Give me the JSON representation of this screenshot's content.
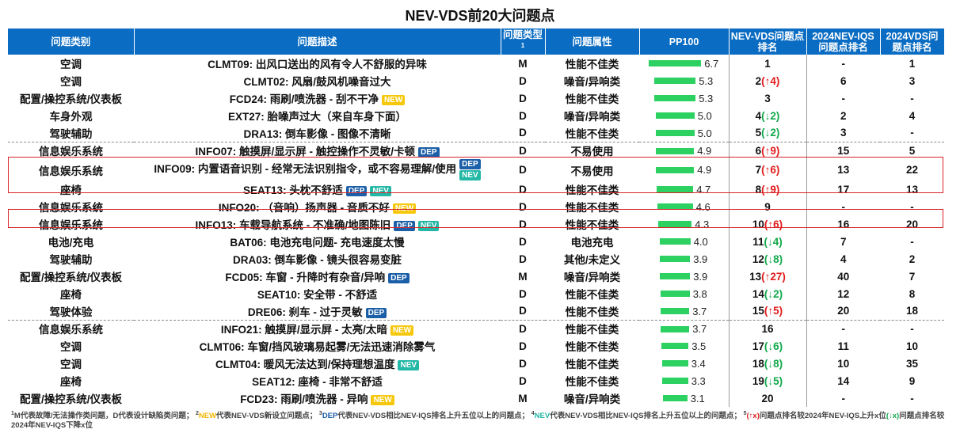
{
  "title": "NEV-VDS前20大问题点",
  "headers": {
    "category": "问题类别",
    "desc": "问题描述",
    "type": "问题类型",
    "type_sup": "1",
    "attr": "问题属性",
    "pp": "PP100",
    "nev": "NEV-VDS问题点排名",
    "iqs": "2024NEV-IQS问题点排名",
    "vds": "2024VDS问题点排名"
  },
  "badge_labels": {
    "NEW": "NEW",
    "DEP": "DEP",
    "NEV": "NEV"
  },
  "colors": {
    "header_bg": "#0a6cc2",
    "bar": "#2dd161",
    "up": "#e21a1a",
    "down": "#10a84a",
    "new": "#f6c80d",
    "dep": "#1b5fa8",
    "nev": "#23b7a6",
    "highlight": "#d8242a"
  },
  "chart_data": {
    "type": "table",
    "title": "NEV-VDS前20大问题点",
    "pp_max": 6.7,
    "rows": [
      {
        "category": "空调",
        "desc": "CLMT09: 出风口送出的风有令人不舒服的异味",
        "badges": [],
        "type": "M",
        "attr": "性能不佳类",
        "pp100": "6.7",
        "rank": "1",
        "change": "",
        "dir": "",
        "iqs": "-",
        "vds": "1"
      },
      {
        "category": "空调",
        "desc": "CLMT02: 风扇/鼓风机噪音过大",
        "badges": [],
        "type": "D",
        "attr": "噪音/异响类",
        "pp100": "5.3",
        "rank": "2",
        "change": "↑4",
        "dir": "up",
        "iqs": "6",
        "vds": "3"
      },
      {
        "category": "配置/操控系统/仪表板",
        "desc": "FCD24: 雨刷/喷洗器 - 刮不干净",
        "badges": [
          "NEW"
        ],
        "type": "D",
        "attr": "性能不佳类",
        "pp100": "5.3",
        "rank": "3",
        "change": "",
        "dir": "",
        "iqs": "-",
        "vds": "-"
      },
      {
        "category": "车身外观",
        "desc": "EXT27: 胎噪声过大（来自车身下面）",
        "badges": [],
        "type": "D",
        "attr": "噪音/异响类",
        "pp100": "5.0",
        "rank": "4",
        "change": "↓2",
        "dir": "down",
        "iqs": "2",
        "vds": "4"
      },
      {
        "category": "驾驶辅助",
        "desc": "DRA13: 倒车影像 - 图像不清晰",
        "badges": [],
        "type": "D",
        "attr": "性能不佳类",
        "pp100": "5.0",
        "rank": "5",
        "change": "↓2",
        "dir": "down",
        "iqs": "3",
        "vds": "-"
      },
      {
        "category": "信息娱乐系统",
        "desc": "INFO07: 触摸屏/显示屏 - 触控操作不灵敏/卡顿",
        "badges": [
          "DEP"
        ],
        "type": "D",
        "attr": "不易使用",
        "pp100": "4.9",
        "rank": "6",
        "change": "↑9",
        "dir": "up",
        "iqs": "15",
        "vds": "5"
      },
      {
        "category": "信息娱乐系统",
        "desc": "INFO09: 内置语音识别 - 经常无法识别指令，或不容易理解/使用",
        "badges": [
          "DEP",
          "NEV"
        ],
        "stack": true,
        "type": "D",
        "attr": "不易使用",
        "pp100": "4.9",
        "rank": "7",
        "change": "↑6",
        "dir": "up",
        "iqs": "13",
        "vds": "22"
      },
      {
        "category": "座椅",
        "desc": "SEAT13: 头枕不舒适",
        "badges": [
          "DEP",
          "NEV"
        ],
        "type": "D",
        "attr": "性能不佳类",
        "pp100": "4.7",
        "rank": "8",
        "change": "↑9",
        "dir": "up",
        "iqs": "17",
        "vds": "13"
      },
      {
        "category": "信息娱乐系统",
        "desc": "INFO20: （音响）扬声器 - 音质不好",
        "badges": [
          "NEW"
        ],
        "type": "D",
        "attr": "性能不佳类",
        "pp100": "4.6",
        "rank": "9",
        "change": "",
        "dir": "",
        "iqs": "-",
        "vds": "-"
      },
      {
        "category": "信息娱乐系统",
        "desc": "INFO13: 车载导航系统 - 不准确/地图陈旧",
        "badges": [
          "DEP",
          "NEV"
        ],
        "type": "D",
        "attr": "性能不佳类",
        "pp100": "4.3",
        "rank": "10",
        "change": "↑6",
        "dir": "up",
        "iqs": "16",
        "vds": "20"
      },
      {
        "category": "电池/充电",
        "desc": "BAT06: 电池充电问题- 充电速度太慢",
        "badges": [],
        "type": "D",
        "attr": "电池充电",
        "pp100": "4.0",
        "rank": "11",
        "change": "↓4",
        "dir": "down",
        "iqs": "7",
        "vds": "-"
      },
      {
        "category": "驾驶辅助",
        "desc": "DRA03: 倒车影像 - 镜头很容易变脏",
        "badges": [],
        "type": "D",
        "attr": "其他/未定义",
        "pp100": "3.9",
        "rank": "12",
        "change": "↓8",
        "dir": "down",
        "iqs": "4",
        "vds": "2"
      },
      {
        "category": "配置/操控系统/仪表板",
        "desc": "FCD05: 车窗 - 升降时有杂音/异响",
        "badges": [
          "DEP"
        ],
        "type": "M",
        "attr": "噪音/异响类",
        "pp100": "3.9",
        "rank": "13",
        "change": "↑27",
        "dir": "up",
        "iqs": "40",
        "vds": "7"
      },
      {
        "category": "座椅",
        "desc": "SEAT10: 安全带 - 不舒适",
        "badges": [],
        "type": "D",
        "attr": "性能不佳类",
        "pp100": "3.8",
        "rank": "14",
        "change": "↓2",
        "dir": "down",
        "iqs": "12",
        "vds": "8"
      },
      {
        "category": "驾驶体验",
        "desc": "DRE06: 刹车 - 过于灵敏",
        "badges": [
          "DEP"
        ],
        "type": "D",
        "attr": "性能不佳类",
        "pp100": "3.7",
        "rank": "15",
        "change": "↑5",
        "dir": "up",
        "iqs": "20",
        "vds": "18"
      },
      {
        "category": "信息娱乐系统",
        "desc": "INFO21: 触摸屏/显示屏 - 太亮/太暗",
        "badges": [
          "NEW"
        ],
        "type": "D",
        "attr": "性能不佳类",
        "pp100": "3.7",
        "rank": "16",
        "change": "",
        "dir": "",
        "iqs": "-",
        "vds": "-"
      },
      {
        "category": "空调",
        "desc": "CLMT06: 车窗/挡风玻璃易起雾/无法迅速消除雾气",
        "badges": [],
        "type": "D",
        "attr": "性能不佳类",
        "pp100": "3.5",
        "rank": "17",
        "change": "↓6",
        "dir": "down",
        "iqs": "11",
        "vds": "10"
      },
      {
        "category": "空调",
        "desc": "CLMT04: 暖风无法达到/保持理想温度",
        "badges": [
          "NEV"
        ],
        "type": "D",
        "attr": "性能不佳类",
        "pp100": "3.4",
        "rank": "18",
        "change": "↓8",
        "dir": "down",
        "iqs": "10",
        "vds": "35"
      },
      {
        "category": "座椅",
        "desc": "SEAT12: 座椅 - 非常不舒适",
        "badges": [],
        "type": "D",
        "attr": "性能不佳类",
        "pp100": "3.3",
        "rank": "19",
        "change": "↓5",
        "dir": "down",
        "iqs": "14",
        "vds": "9"
      },
      {
        "category": "配置/操控系统/仪表板",
        "desc": "FCD23: 雨刷/喷洗器 - 异响",
        "badges": [
          "NEW"
        ],
        "type": "M",
        "attr": "噪音/异响类",
        "pp100": "3.1",
        "rank": "20",
        "change": "",
        "dir": "",
        "iqs": "-",
        "vds": "-"
      }
    ]
  },
  "footnote": {
    "n1": "1",
    "t1": "M代表故障/无法操作类问题，D代表设计缺陷类问题；",
    "n2": "2",
    "new_word": "NEW",
    "t2": "代表NEV-VDS新设立问题点；",
    "n3": "3",
    "dep_word": "DEP",
    "t3": "代表NEV-VDS相比NEV-IQS排名上升五位以上的问题点；",
    "n4": "4",
    "nev_word": "NEV",
    "t4": "代表NEV-VDS相比NEV-IQS排名上升五位以上的问题点；",
    "n5": "5",
    "up_sym": "(↑x)",
    "t5": "问题点排名较2024年NEV-IQS上升x位",
    "down_sym": "(↓x)",
    "t6": "问题点排名较2024年NEV-IQS下降x位"
  }
}
